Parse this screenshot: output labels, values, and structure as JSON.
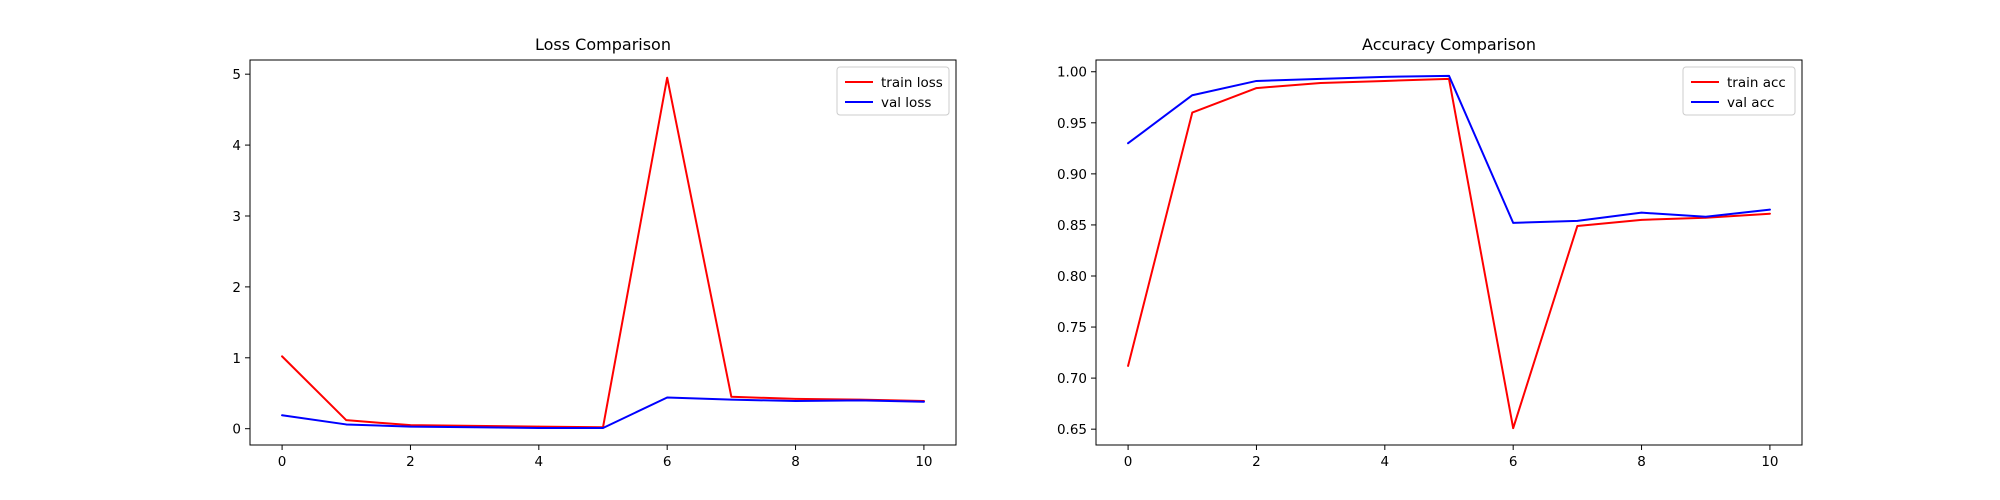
{
  "chart_data": [
    {
      "type": "line",
      "title": "Loss Comparison",
      "xlabel": "",
      "ylabel": "",
      "x": [
        0,
        1,
        2,
        3,
        4,
        5,
        6,
        7,
        8,
        9,
        10
      ],
      "xlim": [
        -0.5,
        10.5
      ],
      "ylim": [
        -0.23,
        5.2
      ],
      "xticks": [
        0,
        2,
        4,
        6,
        8,
        10
      ],
      "yticks": [
        0,
        1,
        2,
        3,
        4,
        5
      ],
      "tick_decimals": 0,
      "grid": false,
      "legend": "upper right",
      "series": [
        {
          "name": "train loss",
          "color": "#ff0000",
          "values": [
            1.02,
            0.12,
            0.05,
            0.04,
            0.03,
            0.02,
            4.95,
            0.45,
            0.42,
            0.41,
            0.39
          ]
        },
        {
          "name": "val loss",
          "color": "#0000ff",
          "values": [
            0.19,
            0.06,
            0.03,
            0.02,
            0.01,
            0.01,
            0.44,
            0.41,
            0.39,
            0.4,
            0.38
          ]
        }
      ]
    },
    {
      "type": "line",
      "title": "Accuracy Comparison",
      "xlabel": "",
      "ylabel": "",
      "x": [
        0,
        1,
        2,
        3,
        4,
        5,
        6,
        7,
        8,
        9,
        10
      ],
      "xlim": [
        -0.5,
        10.5
      ],
      "ylim": [
        0.6345,
        1.0115
      ],
      "xticks": [
        0,
        2,
        4,
        6,
        8,
        10
      ],
      "yticks": [
        0.65,
        0.7,
        0.75,
        0.8,
        0.85,
        0.9,
        0.95,
        1.0
      ],
      "tick_decimals": 2,
      "grid": false,
      "legend": "upper right",
      "series": [
        {
          "name": "train acc",
          "color": "#ff0000",
          "values": [
            0.712,
            0.96,
            0.984,
            0.989,
            0.991,
            0.993,
            0.651,
            0.849,
            0.855,
            0.857,
            0.861
          ]
        },
        {
          "name": "val acc",
          "color": "#0000ff",
          "values": [
            0.93,
            0.977,
            0.991,
            0.993,
            0.995,
            0.996,
            0.852,
            0.854,
            0.862,
            0.858,
            0.865
          ]
        }
      ]
    }
  ]
}
